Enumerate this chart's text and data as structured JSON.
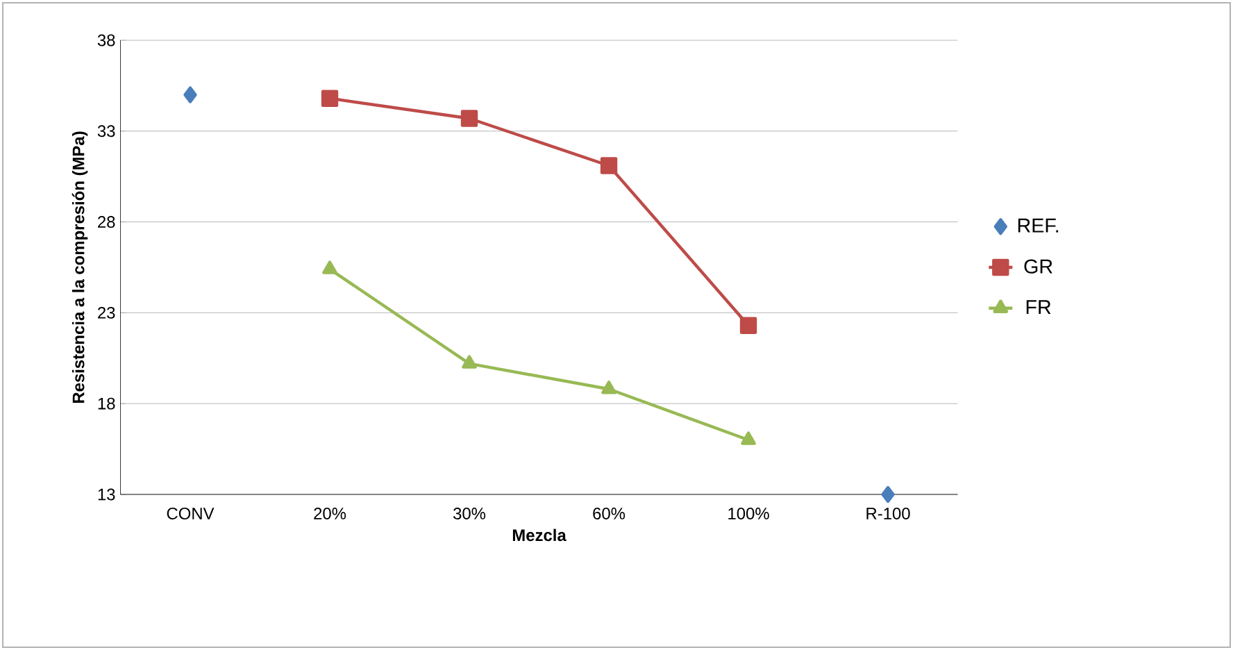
{
  "chart_data": {
    "type": "line",
    "xlabel": "Mezcla",
    "ylabel": "Resistencia a la compresión (MPa)",
    "categories": [
      "CONV",
      "20%",
      "30%",
      "60%",
      "100%",
      "R-100"
    ],
    "series": [
      {
        "name": "REF.",
        "type": "scatter",
        "color": "#4a7ebb",
        "marker": "diamond",
        "values": [
          35.0,
          null,
          null,
          null,
          null,
          13.0
        ]
      },
      {
        "name": "GR",
        "color": "#be4b48",
        "marker": "square",
        "values": [
          null,
          34.8,
          33.7,
          31.1,
          22.3,
          null
        ]
      },
      {
        "name": "FR",
        "color": "#98b954",
        "marker": "triangle",
        "values": [
          null,
          25.4,
          20.2,
          18.8,
          16.0,
          null
        ]
      }
    ],
    "ylim": [
      13,
      38
    ],
    "yticks": [
      13,
      18,
      23,
      28,
      33,
      38
    ],
    "grid": "y",
    "legend": "right",
    "line_style": "solid"
  }
}
